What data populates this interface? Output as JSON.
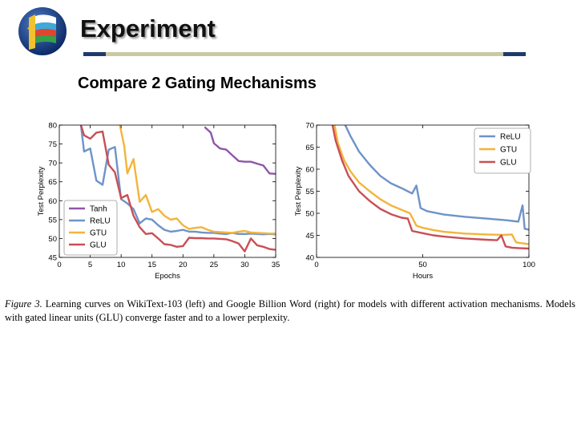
{
  "slide": {
    "title": "Experiment",
    "subtitle": "Compare 2 Gating Mechanisms"
  },
  "caption": {
    "figure_label": "Figure 3.",
    "text": " Learning curves on WikiText-103 (left) and Google Billion Word (right) for models with different activation mechanisms. Models with gated linear units (GLU) converge faster and to a lower perplexity."
  },
  "colors": {
    "title_rule": "#c9c9a6",
    "rule_caps": "#1f3b6e",
    "Tanh": "#8e57a8",
    "ReLU": "#6e93c8",
    "GTU": "#f3b43b",
    "GLU": "#c94f55"
  },
  "chart_data": [
    {
      "type": "line",
      "xlabel": "Epochs",
      "ylabel": "Test Perplexity",
      "xlim": [
        0,
        35
      ],
      "ylim": [
        45,
        80
      ],
      "xticks": [
        0,
        5,
        10,
        15,
        20,
        25,
        30,
        35
      ],
      "yticks": [
        45,
        50,
        55,
        60,
        65,
        70,
        75,
        80
      ],
      "grid": false,
      "legend_position": "bottom-left",
      "series": [
        {
          "name": "Tanh",
          "color": "#8e57a8",
          "x": [
            23.5,
            24.5,
            25,
            26,
            27,
            28,
            29,
            30,
            31,
            32,
            33,
            34,
            35
          ],
          "y": [
            79.5,
            78,
            75.2,
            73.8,
            73.5,
            72,
            70.5,
            70.3,
            70.3,
            69.8,
            69.3,
            67.2,
            67.1
          ]
        },
        {
          "name": "ReLU",
          "color": "#6e93c8",
          "x": [
            3.5,
            4,
            5,
            6,
            7,
            8,
            9,
            10,
            11,
            12,
            13,
            14,
            15,
            16,
            17,
            18,
            19,
            20,
            21,
            22,
            23,
            24,
            25,
            26,
            27,
            28,
            29,
            30,
            31,
            32,
            33,
            34,
            35
          ],
          "y": [
            80,
            73,
            73.8,
            65.3,
            64.2,
            73.5,
            74.2,
            60.4,
            59.3,
            57.8,
            54,
            55.3,
            55,
            53.5,
            52.3,
            51.8,
            52,
            52.3,
            51.8,
            51.8,
            51.6,
            51.5,
            51.5,
            51.3,
            51.2,
            51.5,
            51.2,
            51.2,
            51.3,
            51.2,
            51.1,
            51.2,
            51.1
          ]
        },
        {
          "name": "GTU",
          "color": "#f3b43b",
          "x": [
            9.8,
            10.5,
            11,
            12,
            13,
            14,
            15,
            16,
            17,
            18,
            19,
            20,
            21,
            22,
            23,
            24,
            25,
            26,
            27,
            28,
            29,
            30,
            31,
            32,
            33,
            34,
            35
          ],
          "y": [
            80,
            74.5,
            67.2,
            71,
            59.7,
            61.5,
            57,
            57.8,
            56,
            55,
            55.3,
            53.5,
            52.5,
            52.8,
            53,
            52.3,
            51.8,
            51.7,
            51.6,
            51.5,
            51.8,
            52,
            51.6,
            51.5,
            51.4,
            51.3,
            51.3
          ]
        },
        {
          "name": "GLU",
          "color": "#c94f55",
          "x": [
            3.5,
            4,
            5,
            6,
            7,
            8,
            9,
            10,
            11,
            12,
            13,
            14,
            15,
            16,
            17,
            18,
            19,
            20,
            21,
            22,
            23,
            24,
            25,
            26,
            27,
            28,
            29,
            30,
            31,
            32,
            33,
            34,
            35
          ],
          "y": [
            80,
            77.3,
            76.4,
            78,
            78.3,
            69.5,
            67.5,
            60.7,
            61.5,
            56,
            53,
            51.2,
            51.4,
            50,
            48.5,
            48.3,
            47.8,
            48,
            50.2,
            50.1,
            50.1,
            50,
            50,
            49.9,
            49.8,
            49.3,
            48.7,
            46.6,
            50,
            48.2,
            47.8,
            47.2,
            47
          ]
        }
      ]
    },
    {
      "type": "line",
      "xlabel": "Hours",
      "ylabel": "Test Perplexity",
      "xlim": [
        0,
        100
      ],
      "ylim": [
        40,
        70
      ],
      "xticks": [
        0,
        50,
        100
      ],
      "yticks": [
        40,
        45,
        50,
        55,
        60,
        65,
        70
      ],
      "grid": false,
      "legend_position": "top-right",
      "series": [
        {
          "name": "ReLU",
          "color": "#6e93c8",
          "x": [
            13.5,
            16,
            20,
            25,
            30,
            35,
            40,
            45,
            47,
            49,
            52,
            60,
            70,
            80,
            85,
            90,
            95,
            97,
            98,
            100
          ],
          "y": [
            70,
            67.5,
            64,
            61,
            58.5,
            56.8,
            55.7,
            54.5,
            56.3,
            51.2,
            50.5,
            49.7,
            49.2,
            48.8,
            48.6,
            48.4,
            48.1,
            51.8,
            46.5,
            46.3
          ]
        },
        {
          "name": "GTU",
          "color": "#f3b43b",
          "x": [
            8.5,
            10,
            13,
            16,
            20,
            25,
            30,
            35,
            40,
            44,
            47,
            50,
            55,
            60,
            70,
            80,
            88,
            92,
            94,
            97,
            100
          ],
          "y": [
            70,
            66,
            62,
            59.5,
            57,
            55,
            53.2,
            51.8,
            50.8,
            50,
            47.2,
            46.7,
            46.2,
            45.8,
            45.4,
            45.2,
            45.1,
            45.2,
            43.4,
            43.2,
            43
          ]
        },
        {
          "name": "GLU",
          "color": "#c94f55",
          "x": [
            7.5,
            9,
            12,
            15,
            20,
            25,
            30,
            35,
            40,
            43,
            45,
            50,
            55,
            60,
            70,
            80,
            85,
            87,
            89,
            92,
            95,
            100
          ],
          "y": [
            70,
            66.5,
            62,
            58.5,
            55,
            52.8,
            51,
            49.8,
            49,
            48.8,
            46,
            45.5,
            45,
            44.7,
            44.3,
            44,
            43.9,
            45,
            42.5,
            42.2,
            42.1,
            42
          ]
        }
      ]
    }
  ]
}
